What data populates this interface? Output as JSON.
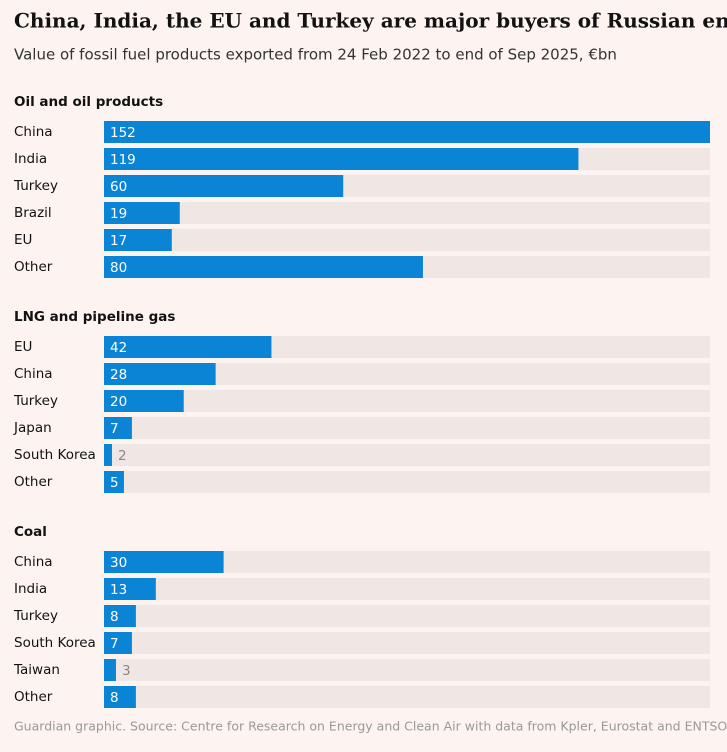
{
  "title": "China, India, the EU and Turkey are major buyers of Russian energy",
  "subtitle": "Value of fossil fuel products exported from 24 Feb 2022 to end of Sep 2025, €bn",
  "source": "Guardian graphic. Source: Centre for Research on Energy and Clean Air with data from Kpler, Eurostat and ENTSOG",
  "chart_data": [
    {
      "type": "bar",
      "title": "Oil and oil products",
      "categories": [
        "China",
        "India",
        "Turkey",
        "Brazil",
        "EU",
        "Other"
      ],
      "values": [
        152,
        119,
        60,
        19,
        17,
        80
      ],
      "color": "#0c84d6"
    },
    {
      "type": "bar",
      "title": "LNG and pipeline gas",
      "categories": [
        "EU",
        "China",
        "Turkey",
        "Japan",
        "South Korea",
        "Other"
      ],
      "values": [
        42,
        28,
        20,
        7,
        2,
        5
      ],
      "color": "#0c84d6"
    },
    {
      "type": "bar",
      "title": "Coal",
      "categories": [
        "China",
        "India",
        "Turkey",
        "South Korea",
        "Taiwan",
        "Other"
      ],
      "values": [
        30,
        13,
        8,
        7,
        3,
        8
      ],
      "color": "#0c84d6"
    }
  ]
}
